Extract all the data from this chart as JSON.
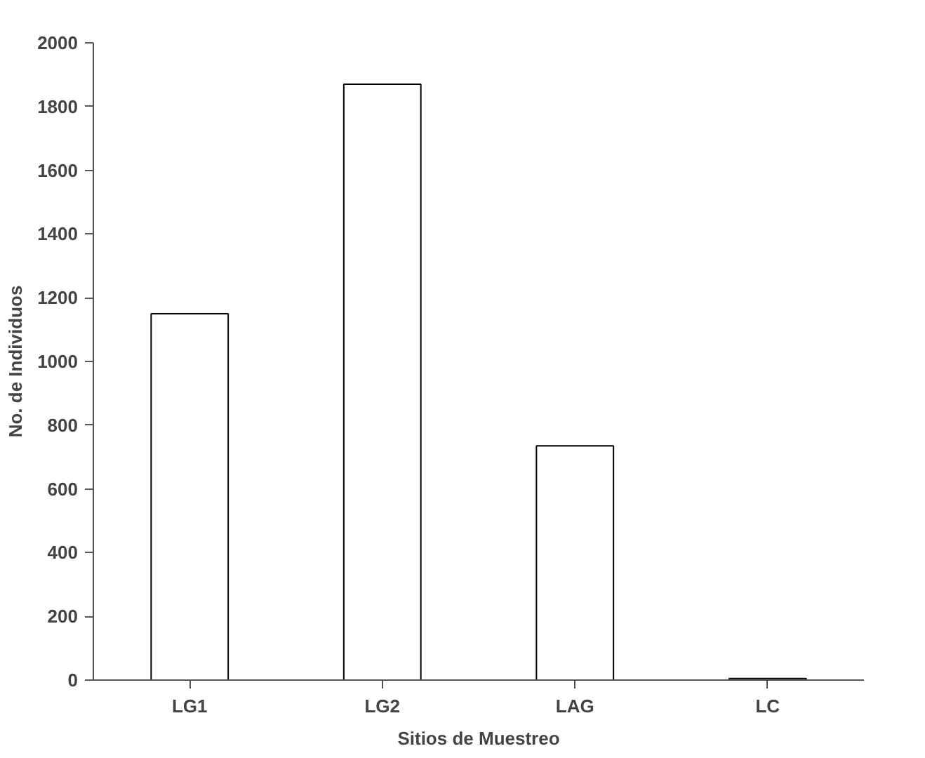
{
  "chart_data": {
    "type": "bar",
    "xlabel": "Sitios de Muestreo",
    "ylabel": "No. de Individuos",
    "categories": [
      "LG1",
      "LG2",
      "LAG",
      "LC"
    ],
    "values": [
      1150,
      1870,
      735,
      5
    ],
    "color": "#ffffff",
    "ylim": [
      0,
      2000
    ],
    "yticks": [
      0,
      200,
      400,
      600,
      800,
      1000,
      1200,
      1400,
      1600,
      1800,
      2000
    ],
    "grid": false
  }
}
